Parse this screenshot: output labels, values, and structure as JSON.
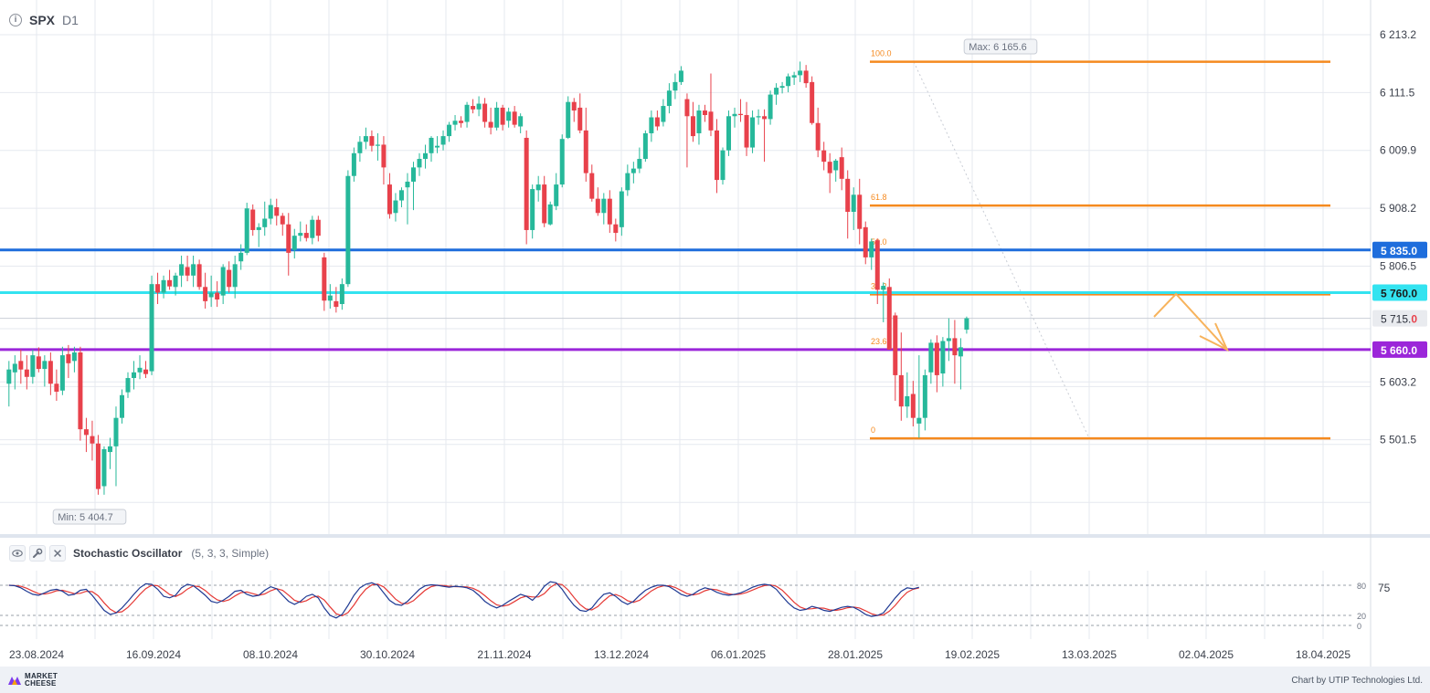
{
  "header": {
    "symbol": "SPX",
    "timeframe": "D1",
    "info_icon": "info-icon"
  },
  "oscillator_bar": {
    "name": "Stochastic Oscillator",
    "params": "(5, 3, 3, Simple)",
    "icons": [
      "eye-icon",
      "wrench-icon",
      "close-icon"
    ]
  },
  "footer": {
    "brand_line1": "MARKET",
    "brand_line2": "CHEESE",
    "credit": "Chart by UTIP Technologies Ltd."
  },
  "colors": {
    "bull": "#26b89a",
    "bear": "#e8414b",
    "fib": "#f58a1f",
    "blue_level": "#1e6ddc",
    "cyan_level": "#33e3f0",
    "purple_level": "#9b26d9",
    "k_line": "#1f3a93",
    "d_line": "#e53935",
    "arrow": "#f7b35c"
  },
  "chart_data": {
    "type": "candlestick",
    "symbol": "SPX",
    "timeframe": "D1",
    "y_ticks": [
      "6 213.2",
      "6 111.5",
      "6 009.9",
      "5 908.2",
      "5 806.5",
      "5 603.2",
      "5 501.5"
    ],
    "x_ticks": [
      "23.08.2024",
      "16.09.2024",
      "08.10.2024",
      "30.10.2024",
      "21.11.2024",
      "13.12.2024",
      "06.01.2025",
      "28.01.2025",
      "19.02.2025",
      "13.03.2025",
      "02.04.2025",
      "18.04.2025"
    ],
    "max_label": "Max: 6 165.6",
    "min_label": "Min: 5 404.7",
    "horizontal_levels": [
      {
        "price": 5835.0,
        "label": "5 835.0",
        "color": "#1e6ddc"
      },
      {
        "price": 5760.0,
        "label": "5 760.0",
        "color": "#33e3f0"
      },
      {
        "price": 5660.0,
        "label": "5 660.0",
        "color": "#9b26d9"
      }
    ],
    "current_price": {
      "label_main": "5 715.",
      "label_last": "0",
      "price": 5715.0
    },
    "fibonacci": {
      "high": 6165.6,
      "low": 5504.0,
      "levels": [
        {
          "ratio": "100.0",
          "price": 6165.6
        },
        {
          "ratio": "61.8",
          "price": 5913.0
        },
        {
          "ratio": "50.0",
          "price": 5835.0
        },
        {
          "ratio": "38.2",
          "price": 5757.0
        },
        {
          "ratio": "23.6",
          "price": 5660.0
        },
        {
          "ratio": "0",
          "price": 5504.0
        }
      ]
    },
    "candles": [
      {
        "o": 5600,
        "h": 5640,
        "l": 5560,
        "c": 5625
      },
      {
        "o": 5620,
        "h": 5650,
        "l": 5590,
        "c": 5635
      },
      {
        "o": 5640,
        "h": 5660,
        "l": 5600,
        "c": 5625
      },
      {
        "o": 5625,
        "h": 5650,
        "l": 5590,
        "c": 5612
      },
      {
        "o": 5612,
        "h": 5660,
        "l": 5600,
        "c": 5650
      },
      {
        "o": 5648,
        "h": 5664,
        "l": 5620,
        "c": 5626
      },
      {
        "o": 5626,
        "h": 5650,
        "l": 5595,
        "c": 5640
      },
      {
        "o": 5640,
        "h": 5655,
        "l": 5580,
        "c": 5600
      },
      {
        "o": 5600,
        "h": 5625,
        "l": 5570,
        "c": 5586
      },
      {
        "o": 5588,
        "h": 5665,
        "l": 5580,
        "c": 5650
      },
      {
        "o": 5652,
        "h": 5668,
        "l": 5610,
        "c": 5636
      },
      {
        "o": 5640,
        "h": 5665,
        "l": 5620,
        "c": 5655
      },
      {
        "o": 5655,
        "h": 5665,
        "l": 5500,
        "c": 5520
      },
      {
        "o": 5520,
        "h": 5540,
        "l": 5480,
        "c": 5510
      },
      {
        "o": 5508,
        "h": 5535,
        "l": 5465,
        "c": 5495
      },
      {
        "o": 5495,
        "h": 5510,
        "l": 5405,
        "c": 5415
      },
      {
        "o": 5420,
        "h": 5490,
        "l": 5405,
        "c": 5485
      },
      {
        "o": 5480,
        "h": 5505,
        "l": 5450,
        "c": 5490
      },
      {
        "o": 5490,
        "h": 5560,
        "l": 5420,
        "c": 5540
      },
      {
        "o": 5540,
        "h": 5590,
        "l": 5530,
        "c": 5580
      },
      {
        "o": 5585,
        "h": 5620,
        "l": 5575,
        "c": 5610
      },
      {
        "o": 5610,
        "h": 5640,
        "l": 5590,
        "c": 5620
      },
      {
        "o": 5620,
        "h": 5650,
        "l": 5608,
        "c": 5628
      },
      {
        "o": 5625,
        "h": 5640,
        "l": 5610,
        "c": 5617
      },
      {
        "o": 5622,
        "h": 5790,
        "l": 5615,
        "c": 5775
      },
      {
        "o": 5775,
        "h": 5795,
        "l": 5740,
        "c": 5760
      },
      {
        "o": 5760,
        "h": 5790,
        "l": 5750,
        "c": 5782
      },
      {
        "o": 5782,
        "h": 5800,
        "l": 5765,
        "c": 5771
      },
      {
        "o": 5770,
        "h": 5795,
        "l": 5755,
        "c": 5790
      },
      {
        "o": 5790,
        "h": 5825,
        "l": 5770,
        "c": 5810
      },
      {
        "o": 5805,
        "h": 5825,
        "l": 5780,
        "c": 5790
      },
      {
        "o": 5790,
        "h": 5825,
        "l": 5770,
        "c": 5810
      },
      {
        "o": 5810,
        "h": 5818,
        "l": 5765,
        "c": 5770
      },
      {
        "o": 5770,
        "h": 5795,
        "l": 5732,
        "c": 5745
      },
      {
        "o": 5752,
        "h": 5790,
        "l": 5735,
        "c": 5760
      },
      {
        "o": 5760,
        "h": 5780,
        "l": 5735,
        "c": 5748
      },
      {
        "o": 5755,
        "h": 5810,
        "l": 5740,
        "c": 5805
      },
      {
        "o": 5800,
        "h": 5815,
        "l": 5760,
        "c": 5770
      },
      {
        "o": 5770,
        "h": 5825,
        "l": 5750,
        "c": 5810
      },
      {
        "o": 5815,
        "h": 5845,
        "l": 5800,
        "c": 5830
      },
      {
        "o": 5830,
        "h": 5918,
        "l": 5826,
        "c": 5908
      },
      {
        "o": 5906,
        "h": 5915,
        "l": 5860,
        "c": 5870
      },
      {
        "o": 5870,
        "h": 5882,
        "l": 5840,
        "c": 5875
      },
      {
        "o": 5875,
        "h": 5920,
        "l": 5860,
        "c": 5890
      },
      {
        "o": 5890,
        "h": 5925,
        "l": 5880,
        "c": 5914
      },
      {
        "o": 5910,
        "h": 5925,
        "l": 5878,
        "c": 5895
      },
      {
        "o": 5895,
        "h": 5900,
        "l": 5860,
        "c": 5880
      },
      {
        "o": 5880,
        "h": 5900,
        "l": 5790,
        "c": 5830
      },
      {
        "o": 5835,
        "h": 5872,
        "l": 5820,
        "c": 5860
      },
      {
        "o": 5860,
        "h": 5885,
        "l": 5850,
        "c": 5865
      },
      {
        "o": 5865,
        "h": 5880,
        "l": 5850,
        "c": 5856
      },
      {
        "o": 5856,
        "h": 5895,
        "l": 5845,
        "c": 5888
      },
      {
        "o": 5888,
        "h": 5895,
        "l": 5850,
        "c": 5860
      },
      {
        "o": 5822,
        "h": 5830,
        "l": 5728,
        "c": 5746
      },
      {
        "o": 5746,
        "h": 5775,
        "l": 5732,
        "c": 5755
      },
      {
        "o": 5745,
        "h": 5770,
        "l": 5725,
        "c": 5735
      },
      {
        "o": 5740,
        "h": 5785,
        "l": 5730,
        "c": 5775
      },
      {
        "o": 5775,
        "h": 5975,
        "l": 5770,
        "c": 5965
      },
      {
        "o": 5965,
        "h": 6015,
        "l": 5955,
        "c": 6005
      },
      {
        "o": 6005,
        "h": 6035,
        "l": 5990,
        "c": 6025
      },
      {
        "o": 6025,
        "h": 6050,
        "l": 6012,
        "c": 6035
      },
      {
        "o": 6035,
        "h": 6045,
        "l": 6008,
        "c": 6018
      },
      {
        "o": 6018,
        "h": 6040,
        "l": 5992,
        "c": 6020
      },
      {
        "o": 6020,
        "h": 6035,
        "l": 5950,
        "c": 5980
      },
      {
        "o": 5950,
        "h": 5970,
        "l": 5890,
        "c": 5898
      },
      {
        "o": 5900,
        "h": 5935,
        "l": 5885,
        "c": 5922
      },
      {
        "o": 5922,
        "h": 5945,
        "l": 5910,
        "c": 5940
      },
      {
        "o": 5945,
        "h": 5970,
        "l": 5880,
        "c": 5955
      },
      {
        "o": 5955,
        "h": 5990,
        "l": 5905,
        "c": 5980
      },
      {
        "o": 5980,
        "h": 6005,
        "l": 5965,
        "c": 5995
      },
      {
        "o": 5995,
        "h": 6020,
        "l": 5978,
        "c": 6005
      },
      {
        "o": 6005,
        "h": 6035,
        "l": 5990,
        "c": 6032
      },
      {
        "o": 6015,
        "h": 6035,
        "l": 6005,
        "c": 6018
      },
      {
        "o": 6020,
        "h": 6045,
        "l": 6010,
        "c": 6035
      },
      {
        "o": 6035,
        "h": 6060,
        "l": 6025,
        "c": 6055
      },
      {
        "o": 6055,
        "h": 6072,
        "l": 6045,
        "c": 6062
      },
      {
        "o": 6062,
        "h": 6070,
        "l": 6050,
        "c": 6058
      },
      {
        "o": 6060,
        "h": 6095,
        "l": 6050,
        "c": 6090
      },
      {
        "o": 6088,
        "h": 6100,
        "l": 6075,
        "c": 6082
      },
      {
        "o": 6082,
        "h": 6105,
        "l": 6070,
        "c": 6092
      },
      {
        "o": 6092,
        "h": 6102,
        "l": 6050,
        "c": 6060
      },
      {
        "o": 6060,
        "h": 6085,
        "l": 6038,
        "c": 6050
      },
      {
        "o": 6050,
        "h": 6095,
        "l": 6045,
        "c": 6085
      },
      {
        "o": 6085,
        "h": 6090,
        "l": 6045,
        "c": 6055
      },
      {
        "o": 6062,
        "h": 6085,
        "l": 6050,
        "c": 6078
      },
      {
        "o": 6078,
        "h": 6088,
        "l": 6050,
        "c": 6055
      },
      {
        "o": 6052,
        "h": 6075,
        "l": 6040,
        "c": 6070
      },
      {
        "o": 6032,
        "h": 6045,
        "l": 5845,
        "c": 5870
      },
      {
        "o": 5870,
        "h": 5950,
        "l": 5855,
        "c": 5942
      },
      {
        "o": 5940,
        "h": 5965,
        "l": 5920,
        "c": 5950
      },
      {
        "o": 5950,
        "h": 5965,
        "l": 5875,
        "c": 5882
      },
      {
        "o": 5880,
        "h": 5920,
        "l": 5878,
        "c": 5915
      },
      {
        "o": 5912,
        "h": 5970,
        "l": 5905,
        "c": 5950
      },
      {
        "o": 5950,
        "h": 6038,
        "l": 5945,
        "c": 6030
      },
      {
        "o": 6032,
        "h": 6105,
        "l": 6030,
        "c": 6095
      },
      {
        "o": 6095,
        "h": 6102,
        "l": 6060,
        "c": 6080
      },
      {
        "o": 6085,
        "h": 6110,
        "l": 6040,
        "c": 6045
      },
      {
        "o": 6045,
        "h": 6085,
        "l": 5955,
        "c": 5970
      },
      {
        "o": 5970,
        "h": 5985,
        "l": 5920,
        "c": 5925
      },
      {
        "o": 5925,
        "h": 5945,
        "l": 5895,
        "c": 5900
      },
      {
        "o": 5900,
        "h": 5935,
        "l": 5880,
        "c": 5925
      },
      {
        "o": 5925,
        "h": 5940,
        "l": 5865,
        "c": 5880
      },
      {
        "o": 5880,
        "h": 5890,
        "l": 5850,
        "c": 5865
      },
      {
        "o": 5875,
        "h": 5945,
        "l": 5860,
        "c": 5938
      },
      {
        "o": 5940,
        "h": 5985,
        "l": 5930,
        "c": 5970
      },
      {
        "o": 5970,
        "h": 5990,
        "l": 5952,
        "c": 5978
      },
      {
        "o": 5978,
        "h": 6015,
        "l": 5970,
        "c": 5995
      },
      {
        "o": 5995,
        "h": 6045,
        "l": 5990,
        "c": 6040
      },
      {
        "o": 6040,
        "h": 6080,
        "l": 6025,
        "c": 6068
      },
      {
        "o": 6068,
        "h": 6080,
        "l": 6045,
        "c": 6052
      },
      {
        "o": 6060,
        "h": 6100,
        "l": 6052,
        "c": 6088
      },
      {
        "o": 6088,
        "h": 6128,
        "l": 6075,
        "c": 6115
      },
      {
        "o": 6115,
        "h": 6145,
        "l": 6100,
        "c": 6130
      },
      {
        "o": 6130,
        "h": 6158,
        "l": 6125,
        "c": 6150
      },
      {
        "o": 6100,
        "h": 6110,
        "l": 5980,
        "c": 6070
      },
      {
        "o": 6070,
        "h": 6095,
        "l": 6025,
        "c": 6035
      },
      {
        "o": 6040,
        "h": 6090,
        "l": 6020,
        "c": 6080
      },
      {
        "o": 6080,
        "h": 6090,
        "l": 6060,
        "c": 6072
      },
      {
        "o": 6078,
        "h": 6145,
        "l": 6035,
        "c": 6045
      },
      {
        "o": 6045,
        "h": 6065,
        "l": 5935,
        "c": 5958
      },
      {
        "o": 5958,
        "h": 6015,
        "l": 5950,
        "c": 6010
      },
      {
        "o": 6010,
        "h": 6080,
        "l": 6000,
        "c": 6070
      },
      {
        "o": 6070,
        "h": 6085,
        "l": 6050,
        "c": 6074
      },
      {
        "o": 6074,
        "h": 6100,
        "l": 6060,
        "c": 6072
      },
      {
        "o": 6072,
        "h": 6095,
        "l": 6000,
        "c": 6015
      },
      {
        "o": 6015,
        "h": 6080,
        "l": 6005,
        "c": 6068
      },
      {
        "o": 6068,
        "h": 6082,
        "l": 6055,
        "c": 6070
      },
      {
        "o": 6070,
        "h": 6082,
        "l": 5990,
        "c": 6065
      },
      {
        "o": 6065,
        "h": 6115,
        "l": 6055,
        "c": 6108
      },
      {
        "o": 6108,
        "h": 6128,
        "l": 6090,
        "c": 6120
      },
      {
        "o": 6120,
        "h": 6130,
        "l": 6110,
        "c": 6123
      },
      {
        "o": 6123,
        "h": 6145,
        "l": 6112,
        "c": 6140
      },
      {
        "o": 6138,
        "h": 6148,
        "l": 6125,
        "c": 6142
      },
      {
        "o": 6142,
        "h": 6166,
        "l": 6130,
        "c": 6150
      },
      {
        "o": 6150,
        "h": 6160,
        "l": 6120,
        "c": 6128
      },
      {
        "o": 6130,
        "h": 6140,
        "l": 6055,
        "c": 6058
      },
      {
        "o": 6058,
        "h": 6085,
        "l": 5998,
        "c": 6010
      },
      {
        "o": 6010,
        "h": 6025,
        "l": 5975,
        "c": 5990
      },
      {
        "o": 5990,
        "h": 6005,
        "l": 5935,
        "c": 5970
      },
      {
        "o": 5975,
        "h": 5995,
        "l": 5955,
        "c": 5992
      },
      {
        "o": 5998,
        "h": 6015,
        "l": 5940,
        "c": 5960
      },
      {
        "o": 5960,
        "h": 5975,
        "l": 5855,
        "c": 5902
      },
      {
        "o": 5902,
        "h": 5945,
        "l": 5870,
        "c": 5932
      },
      {
        "o": 5932,
        "h": 5960,
        "l": 5845,
        "c": 5872
      },
      {
        "o": 5875,
        "h": 5885,
        "l": 5810,
        "c": 5822
      },
      {
        "o": 5822,
        "h": 5855,
        "l": 5800,
        "c": 5850
      },
      {
        "o": 5852,
        "h": 5855,
        "l": 5740,
        "c": 5765
      },
      {
        "o": 5765,
        "h": 5778,
        "l": 5708,
        "c": 5772
      },
      {
        "o": 5770,
        "h": 5785,
        "l": 5660,
        "c": 5660
      },
      {
        "o": 5720,
        "h": 5725,
        "l": 5570,
        "c": 5615
      },
      {
        "o": 5615,
        "h": 5690,
        "l": 5535,
        "c": 5560
      },
      {
        "o": 5560,
        "h": 5620,
        "l": 5540,
        "c": 5578
      },
      {
        "o": 5582,
        "h": 5605,
        "l": 5525,
        "c": 5540
      },
      {
        "o": 5530,
        "h": 5650,
        "l": 5505,
        "c": 5540
      },
      {
        "o": 5540,
        "h": 5625,
        "l": 5518,
        "c": 5615
      },
      {
        "o": 5620,
        "h": 5678,
        "l": 5600,
        "c": 5672
      },
      {
        "o": 5672,
        "h": 5685,
        "l": 5585,
        "c": 5615
      },
      {
        "o": 5618,
        "h": 5682,
        "l": 5595,
        "c": 5675
      },
      {
        "o": 5675,
        "h": 5715,
        "l": 5640,
        "c": 5680
      },
      {
        "o": 5680,
        "h": 5712,
        "l": 5600,
        "c": 5650
      },
      {
        "o": 5648,
        "h": 5680,
        "l": 5590,
        "c": 5664
      },
      {
        "o": 5695,
        "h": 5718,
        "l": 5688,
        "c": 5715
      }
    ],
    "stochastic": {
      "name": "Stochastic Oscillator",
      "params": "(5, 3, 3, Simple)",
      "levels": [
        "80",
        "20",
        "0"
      ],
      "current_label": "75",
      "k": [
        80,
        79,
        75,
        68,
        62,
        60,
        65,
        70,
        72,
        68,
        60,
        62,
        70,
        72,
        60,
        45,
        30,
        22,
        25,
        35,
        48,
        62,
        75,
        83,
        82,
        72,
        58,
        55,
        60,
        75,
        82,
        79,
        70,
        60,
        48,
        45,
        50,
        58,
        68,
        70,
        62,
        58,
        60,
        70,
        77,
        73,
        60,
        48,
        42,
        48,
        58,
        62,
        55,
        35,
        20,
        15,
        22,
        40,
        60,
        75,
        82,
        85,
        80,
        65,
        50,
        42,
        40,
        48,
        60,
        72,
        79,
        81,
        80,
        78,
        76,
        78,
        77,
        75,
        70,
        60,
        48,
        40,
        35,
        40,
        48,
        55,
        62,
        58,
        50,
        62,
        78,
        87,
        85,
        72,
        55,
        40,
        30,
        28,
        35,
        50,
        62,
        65,
        58,
        48,
        42,
        48,
        60,
        70,
        76,
        80,
        80,
        77,
        70,
        62,
        58,
        62,
        70,
        75,
        72,
        66,
        62,
        60,
        62,
        65,
        70,
        76,
        80,
        82,
        80,
        72,
        58,
        45,
        35,
        30,
        32,
        38,
        35,
        30,
        28,
        32,
        36,
        38,
        36,
        30,
        22,
        18,
        20,
        25,
        40,
        55,
        68,
        75,
        73,
        76
      ]
    }
  }
}
